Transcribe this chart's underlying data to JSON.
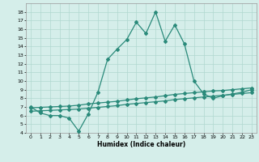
{
  "xlabel": "Humidex (Indice chaleur)",
  "xlim": [
    -0.5,
    23.5
  ],
  "ylim": [
    4,
    19
  ],
  "yticks": [
    4,
    5,
    6,
    7,
    8,
    9,
    10,
    11,
    12,
    13,
    14,
    15,
    16,
    17,
    18
  ],
  "xticks": [
    0,
    1,
    2,
    3,
    4,
    5,
    6,
    7,
    8,
    9,
    10,
    11,
    12,
    13,
    14,
    15,
    16,
    17,
    18,
    19,
    20,
    21,
    22,
    23
  ],
  "bg_color": "#d5eeea",
  "grid_color": "#b0d8d0",
  "line_color": "#2a8a7a",
  "line1_x": [
    0,
    1,
    2,
    3,
    4,
    5,
    6,
    7,
    8,
    9,
    10,
    11,
    12,
    13,
    14,
    15,
    16,
    17,
    18,
    19,
    20,
    21,
    22,
    23
  ],
  "line1_y": [
    7.0,
    6.3,
    6.0,
    6.0,
    5.7,
    4.2,
    6.2,
    8.7,
    12.5,
    13.7,
    14.8,
    16.8,
    15.5,
    18.0,
    14.6,
    16.5,
    14.3,
    10.0,
    8.5,
    8.0,
    8.3,
    8.5,
    8.7,
    9.0
  ],
  "line2_x": [
    0,
    1,
    2,
    3,
    4,
    5,
    6,
    7,
    8,
    9,
    10,
    11,
    12,
    13,
    14,
    15,
    16,
    17,
    18,
    19,
    20,
    21,
    22,
    23
  ],
  "line2_y": [
    6.5,
    6.55,
    6.6,
    6.65,
    6.7,
    6.75,
    6.85,
    6.95,
    7.05,
    7.15,
    7.3,
    7.4,
    7.5,
    7.6,
    7.7,
    7.85,
    7.95,
    8.05,
    8.15,
    8.25,
    8.35,
    8.45,
    8.55,
    8.65
  ],
  "line3_x": [
    0,
    1,
    2,
    3,
    4,
    5,
    6,
    7,
    8,
    9,
    10,
    11,
    12,
    13,
    14,
    15,
    16,
    17,
    18,
    19,
    20,
    21,
    22,
    23
  ],
  "line3_y": [
    6.9,
    6.95,
    7.0,
    7.05,
    7.1,
    7.2,
    7.35,
    7.45,
    7.55,
    7.65,
    7.8,
    7.95,
    8.05,
    8.15,
    8.3,
    8.45,
    8.55,
    8.65,
    8.75,
    8.85,
    8.9,
    9.0,
    9.1,
    9.2
  ]
}
